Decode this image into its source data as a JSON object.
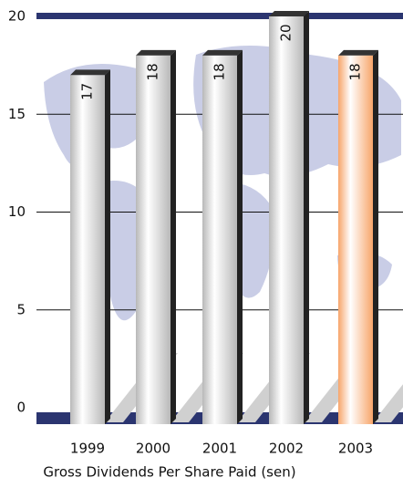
{
  "chart_data": {
    "type": "bar",
    "x_label": "Gross Dividends Per Share Paid (sen)",
    "categories": [
      "1999",
      "2000",
      "2001",
      "2002",
      "2003"
    ],
    "values": [
      17,
      18,
      18,
      20,
      18
    ],
    "colors": [
      "#b8b8b8",
      "#b8b8b8",
      "#b8b8b8",
      "#b8b8b8",
      "#f7a56a"
    ],
    "ylim": [
      0,
      20
    ],
    "yticks": [
      0,
      5,
      10,
      15,
      20
    ],
    "grid": true
  }
}
